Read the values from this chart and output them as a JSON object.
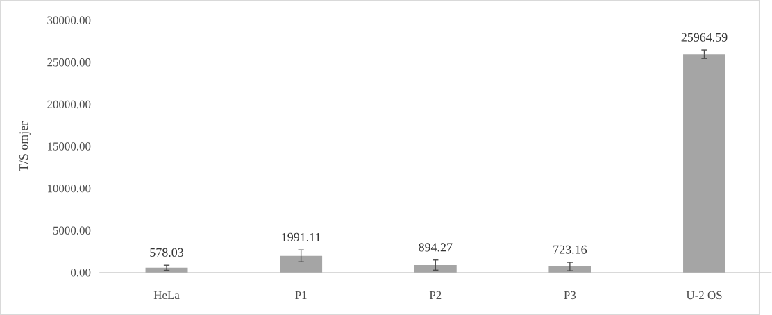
{
  "chart_data": {
    "type": "bar",
    "ylabel": "T/S omjer",
    "categories": [
      "HeLa",
      "P1",
      "P2",
      "P3",
      "U-2 OS"
    ],
    "values": [
      578.03,
      1991.11,
      894.27,
      723.16,
      25964.59
    ],
    "errors": [
      300,
      700,
      600,
      500,
      500
    ],
    "color": "#a5a5a5",
    "data_labels": true,
    "ylim": [
      0,
      30000
    ],
    "yticks": [
      {
        "value": 0,
        "label": "0.00"
      },
      {
        "value": 5000,
        "label": "5000.00"
      },
      {
        "value": 10000,
        "label": "10000.00"
      },
      {
        "value": 15000,
        "label": "15000.00"
      },
      {
        "value": 20000,
        "label": "20000.00"
      },
      {
        "value": 25000,
        "label": "25000.00"
      },
      {
        "value": 30000,
        "label": "30000.00"
      }
    ]
  }
}
